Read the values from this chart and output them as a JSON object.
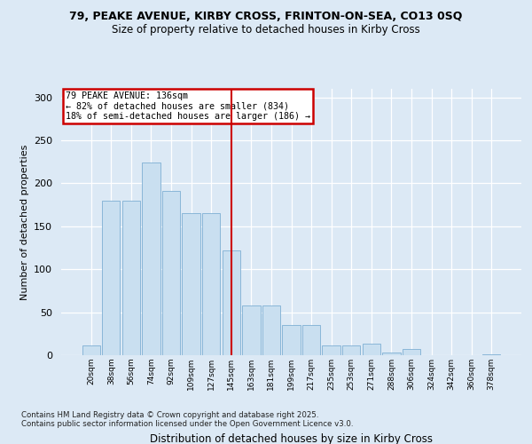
{
  "title": "79, PEAKE AVENUE, KIRBY CROSS, FRINTON-ON-SEA, CO13 0SQ",
  "subtitle": "Size of property relative to detached houses in Kirby Cross",
  "xlabel": "Distribution of detached houses by size in Kirby Cross",
  "ylabel": "Number of detached properties",
  "bar_values": [
    11,
    180,
    180,
    224,
    191,
    165,
    165,
    122,
    58,
    58,
    35,
    35,
    11,
    11,
    13,
    3,
    7,
    0,
    0,
    0,
    1
  ],
  "bar_color": "#c9dff0",
  "bar_edge_color": "#7eafd4",
  "tick_labels": [
    "20sqm",
    "38sqm",
    "56sqm",
    "74sqm",
    "92sqm",
    "109sqm",
    "127sqm",
    "145sqm",
    "163sqm",
    "181sqm",
    "199sqm",
    "217sqm",
    "235sqm",
    "253sqm",
    "271sqm",
    "288sqm",
    "306sqm",
    "324sqm",
    "342sqm",
    "360sqm",
    "378sqm"
  ],
  "vline_x": 7.0,
  "vline_color": "#cc0000",
  "annotation_title": "79 PEAKE AVENUE: 136sqm",
  "annotation_line1": "← 82% of detached houses are smaller (834)",
  "annotation_line2": "18% of semi-detached houses are larger (186) →",
  "annotation_box_color": "#cc0000",
  "ylim": [
    0,
    310
  ],
  "yticks": [
    0,
    50,
    100,
    150,
    200,
    250,
    300
  ],
  "footer_line1": "Contains HM Land Registry data © Crown copyright and database right 2025.",
  "footer_line2": "Contains public sector information licensed under the Open Government Licence v3.0.",
  "bg_color": "#dce9f5",
  "plot_bg_color": "#dce9f5",
  "title_fontsize": 9,
  "subtitle_fontsize": 8.5
}
